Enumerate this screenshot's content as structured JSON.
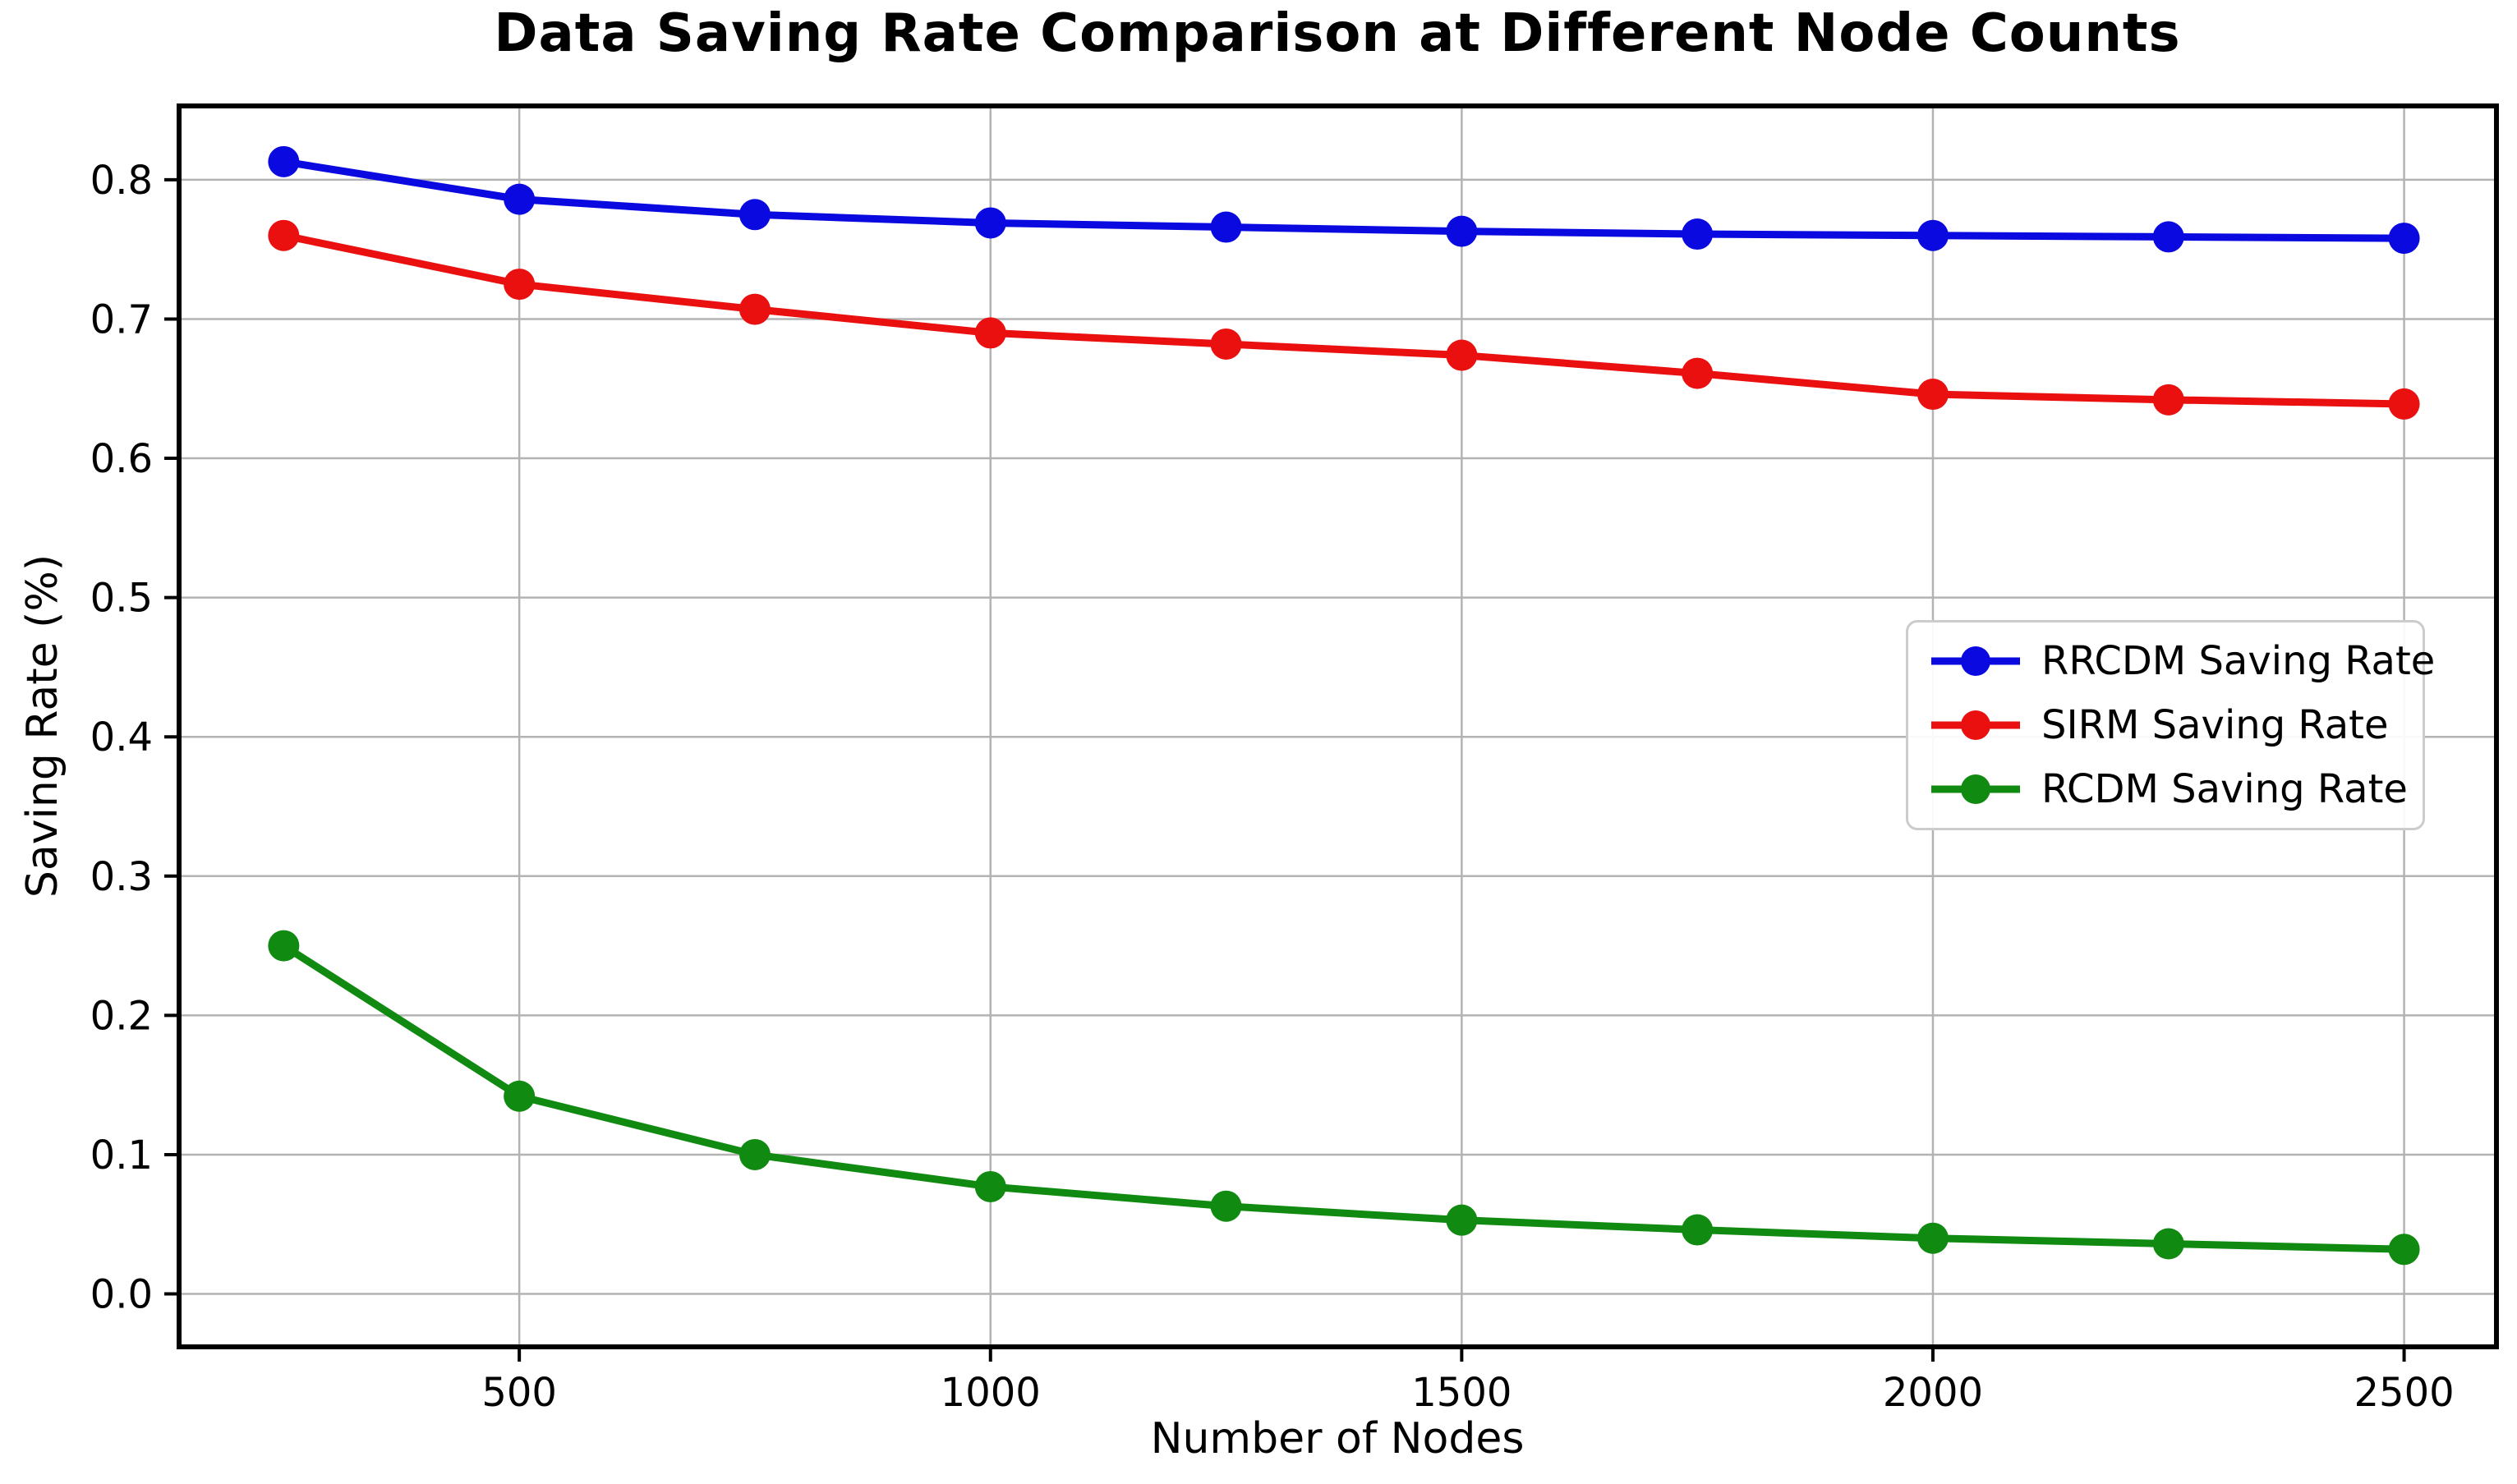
{
  "title": "Data Saving Rate Comparison at Different Node Counts",
  "chart_data": {
    "type": "line",
    "title": "Data Saving Rate Comparison at Different Node Counts",
    "xlabel": "Number of Nodes",
    "ylabel": "Saving Rate (%)",
    "x": [
      250,
      500,
      750,
      1000,
      1250,
      1500,
      1750,
      2000,
      2250,
      2500
    ],
    "series": [
      {
        "name": "RRCDM Saving Rate",
        "color": "#0a0ae0",
        "values": [
          0.813,
          0.786,
          0.775,
          0.769,
          0.766,
          0.763,
          0.761,
          0.76,
          0.759,
          0.758
        ]
      },
      {
        "name": "SIRM Saving Rate",
        "color": "#ea1010",
        "values": [
          0.76,
          0.725,
          0.707,
          0.69,
          0.682,
          0.674,
          0.661,
          0.646,
          0.642,
          0.639
        ]
      },
      {
        "name": "RCDM Saving Rate",
        "color": "#108a10",
        "values": [
          0.25,
          0.142,
          0.1,
          0.077,
          0.063,
          0.053,
          0.046,
          0.04,
          0.036,
          0.032
        ]
      }
    ],
    "xlim": [
      139,
      2598
    ],
    "ylim": [
      -0.038,
      0.853
    ],
    "xticks": {
      "values": [
        500,
        1000,
        1500,
        2000,
        2500
      ],
      "labels": [
        "500",
        "1000",
        "1500",
        "2000",
        "2500"
      ]
    },
    "yticks": {
      "values": [
        0.0,
        0.1,
        0.2,
        0.3,
        0.4,
        0.5,
        0.6,
        0.7,
        0.8
      ],
      "labels": [
        "0.0",
        "0.1",
        "0.2",
        "0.3",
        "0.4",
        "0.5",
        "0.6",
        "0.7",
        "0.8"
      ]
    },
    "grid": true,
    "grid_color": "#b3b3b3",
    "spine_color": "#000000",
    "legend_position": "center right"
  }
}
